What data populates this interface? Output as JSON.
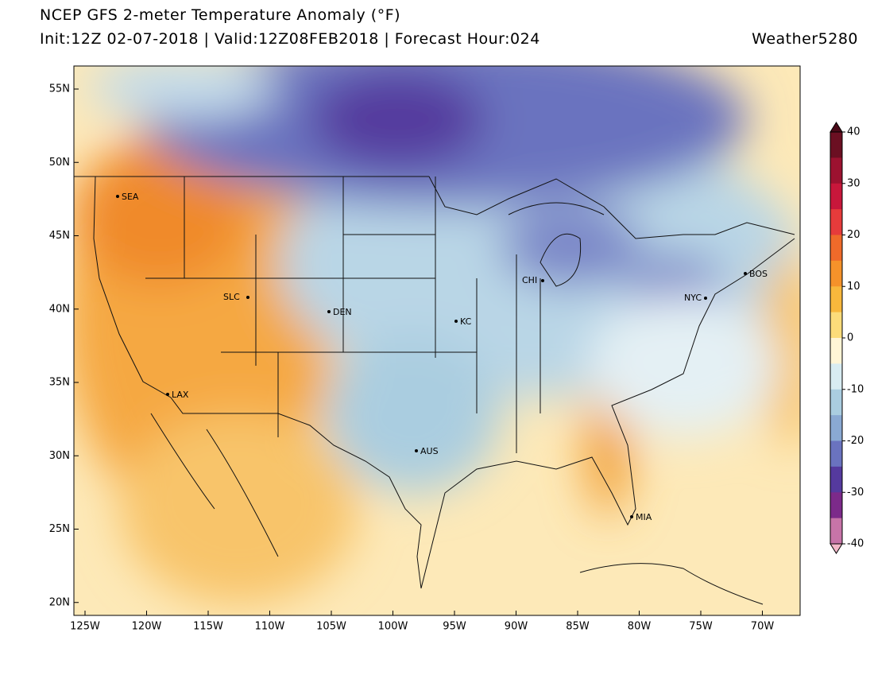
{
  "header": {
    "title": "NCEP GFS 2-meter Temperature Anomaly (°F)",
    "subtitle": "Init:12Z 02-07-2018 | Valid:12Z08FEB2018 | Forecast Hour:024",
    "brand": "Weather5280"
  },
  "map": {
    "lat_ticks": [
      {
        "value": 55,
        "label": "55N"
      },
      {
        "value": 50,
        "label": "50N"
      },
      {
        "value": 45,
        "label": "45N"
      },
      {
        "value": 40,
        "label": "40N"
      },
      {
        "value": 35,
        "label": "35N"
      },
      {
        "value": 30,
        "label": "30N"
      },
      {
        "value": 25,
        "label": "25N"
      },
      {
        "value": 20,
        "label": "20N"
      }
    ],
    "lon_ticks": [
      {
        "value": -125,
        "label": "125W"
      },
      {
        "value": -120,
        "label": "120W"
      },
      {
        "value": -115,
        "label": "115W"
      },
      {
        "value": -110,
        "label": "110W"
      },
      {
        "value": -105,
        "label": "105W"
      },
      {
        "value": -100,
        "label": "100W"
      },
      {
        "value": -95,
        "label": "95W"
      },
      {
        "value": -90,
        "label": "90W"
      },
      {
        "value": -85,
        "label": "85W"
      },
      {
        "value": -80,
        "label": "80W"
      },
      {
        "value": -75,
        "label": "75W"
      },
      {
        "value": -70,
        "label": "70W"
      }
    ],
    "cities": [
      "SEA",
      "SLC",
      "DEN",
      "KC",
      "CHI",
      "NYC",
      "BOS",
      "LAX",
      "AUS",
      "MIA"
    ]
  },
  "colorbar": {
    "ticks": [
      40,
      30,
      20,
      10,
      0,
      -10,
      -20,
      -30,
      -40
    ],
    "colors": [
      "#6b0f22",
      "#9c1230",
      "#c8173b",
      "#e63b3b",
      "#ef6a2a",
      "#f5922a",
      "#f8b83c",
      "#fcdc7a",
      "#fff5d6",
      "#d8ecf2",
      "#aacde0",
      "#8aa9d3",
      "#6a73bf",
      "#553a9e",
      "#7c2a8a",
      "#c774a8"
    ]
  }
}
